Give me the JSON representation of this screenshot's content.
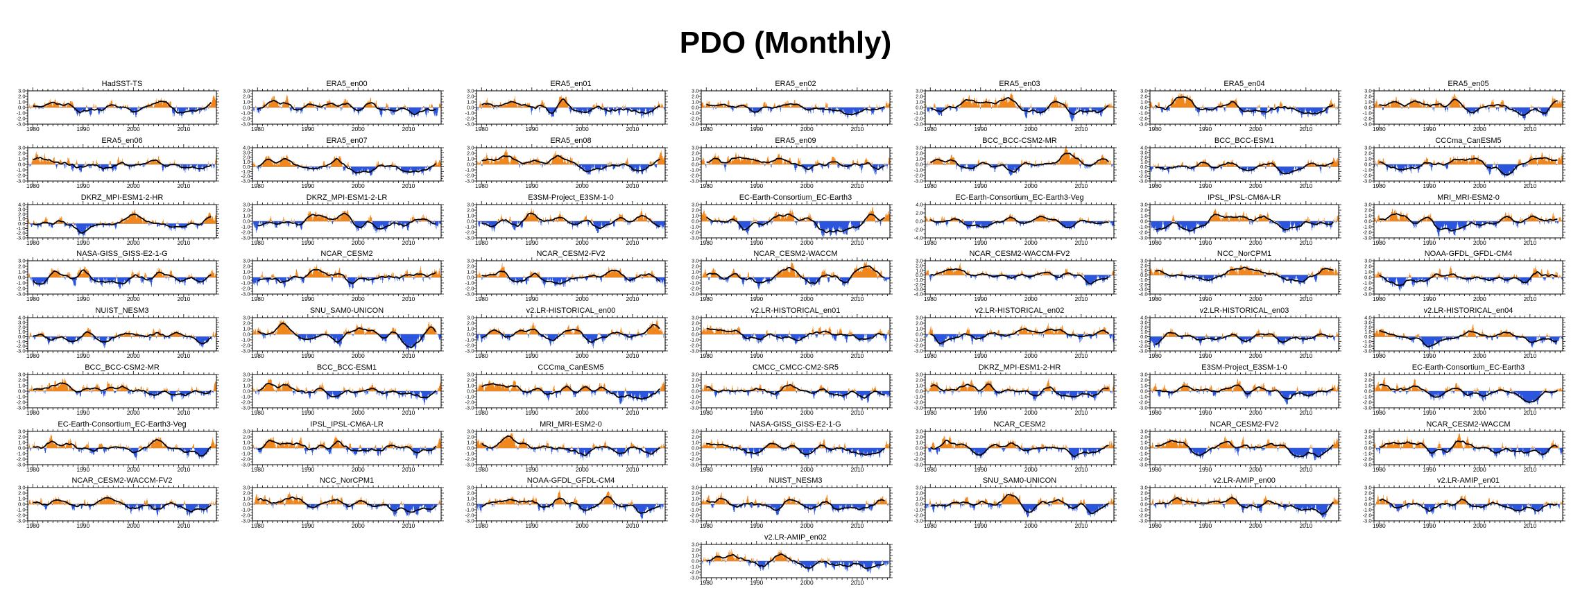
{
  "header": {
    "title": "PDO (Monthly)"
  },
  "colors": {
    "positive_fill": "#f0861e",
    "negative_fill": "#2b55dd",
    "smoothed_line": "#000000",
    "zero_line": "#b0b0b0",
    "frame": "#000000",
    "background": "#ffffff"
  },
  "chart_data": {
    "type": "bar+line",
    "description": "Grid of 57 small-multiple panels of the monthly PDO index (orange = positive anomalies, blue = negative anomalies) with a black low-pass smoothed line, for observations/reanalysis members and CMIP model runs.",
    "x_range": [
      1979,
      2016.5
    ],
    "xtick_years": [
      1980,
      1990,
      2000,
      2010
    ],
    "xtick_labels": [
      "1980",
      "1990",
      "2000",
      "2010"
    ],
    "x_minor_step_years": 1,
    "default_ylim": [
      -3,
      3
    ],
    "default_ytick_step": 1.0,
    "y_minor_divisions": 2,
    "grid": "off",
    "legend": "none",
    "observed_smoothed_line_approx": {
      "x": [
        1979,
        1981,
        1983.5,
        1986,
        1988,
        1989.8,
        1991,
        1992.5,
        1994,
        1995.5,
        1997.5,
        1999,
        2000.5,
        2002,
        2003.5,
        2005,
        2006.5,
        2008,
        2010,
        2011.5,
        2013,
        2014.5,
        2016.4
      ],
      "y": [
        0.35,
        0.55,
        0.65,
        0.75,
        0.3,
        -0.25,
        0.0,
        0.4,
        0.3,
        0.8,
        0.55,
        -0.5,
        -0.6,
        -0.3,
        0.1,
        0.15,
        -0.2,
        -0.8,
        -0.7,
        -1.1,
        -0.9,
        -0.2,
        0.7
      ]
    },
    "panels": [
      {
        "title": "HadSST-TS",
        "ylim": [
          -3,
          3
        ],
        "ystep": 1,
        "obs_blend": 1
      },
      {
        "title": "ERA5_en00",
        "ylim": [
          -3,
          3
        ],
        "ystep": 1,
        "obs_blend": 1
      },
      {
        "title": "ERA5_en01",
        "ylim": [
          -3,
          3
        ],
        "ystep": 1,
        "obs_blend": 1
      },
      {
        "title": "ERA5_en02",
        "ylim": [
          -3,
          3
        ],
        "ystep": 1,
        "obs_blend": 1
      },
      {
        "title": "ERA5_en03",
        "ylim": [
          -3,
          3
        ],
        "ystep": 1,
        "obs_blend": 1
      },
      {
        "title": "ERA5_en04",
        "ylim": [
          -3,
          3
        ],
        "ystep": 1,
        "obs_blend": 1
      },
      {
        "title": "ERA5_en05",
        "ylim": [
          -3,
          3
        ],
        "ystep": 1,
        "obs_blend": 1
      },
      {
        "title": "ERA5_en06",
        "ylim": [
          -3,
          3
        ],
        "ystep": 1,
        "obs_blend": 1
      },
      {
        "title": "ERA5_en07",
        "ylim": [
          -3,
          4
        ],
        "ystep": 1,
        "obs_blend": 1
      },
      {
        "title": "ERA5_en08",
        "ylim": [
          -3,
          3
        ],
        "ystep": 1,
        "obs_blend": 1
      },
      {
        "title": "ERA5_en09",
        "ylim": [
          -3,
          3
        ],
        "ystep": 1,
        "obs_blend": 1
      },
      {
        "title": "BCC_BCC-CSM2-MR",
        "ylim": [
          -3,
          3
        ],
        "ystep": 1,
        "obs_blend": 0
      },
      {
        "title": "BCC_BCC-ESM1",
        "ylim": [
          -3,
          4
        ],
        "ystep": 1,
        "obs_blend": 0
      },
      {
        "title": "CCCma_CanESM5",
        "ylim": [
          -3,
          3
        ],
        "ystep": 1,
        "obs_blend": 0
      },
      {
        "title": "DKRZ_MPI-ESM1-2-HR",
        "ylim": [
          -3,
          4
        ],
        "ystep": 1,
        "obs_blend": 0
      },
      {
        "title": "DKRZ_MPI-ESM1-2-LR",
        "ylim": [
          -3,
          3
        ],
        "ystep": 1,
        "obs_blend": 0
      },
      {
        "title": "E3SM-Project_E3SM-1-0",
        "ylim": [
          -3,
          3
        ],
        "ystep": 1,
        "obs_blend": 0
      },
      {
        "title": "EC-Earth-Consortium_EC-Earth3",
        "ylim": [
          -3,
          3
        ],
        "ystep": 1,
        "obs_blend": 0
      },
      {
        "title": "EC-Earth-Consortium_EC-Earth3-Veg",
        "ylim": [
          -4,
          4
        ],
        "ystep": 2,
        "obs_blend": 0
      },
      {
        "title": "IPSL_IPSL-CM6A-LR",
        "ylim": [
          -3,
          3
        ],
        "ystep": 1,
        "obs_blend": 0
      },
      {
        "title": "MRI_MRI-ESM2-0",
        "ylim": [
          -3,
          3
        ],
        "ystep": 1,
        "obs_blend": 0
      },
      {
        "title": "NASA-GISS_GISS-E2-1-G",
        "ylim": [
          -3,
          3
        ],
        "ystep": 1,
        "obs_blend": 0
      },
      {
        "title": "NCAR_CESM2",
        "ylim": [
          -3,
          3
        ],
        "ystep": 1,
        "obs_blend": 0
      },
      {
        "title": "NCAR_CESM2-FV2",
        "ylim": [
          -3,
          3
        ],
        "ystep": 1,
        "obs_blend": 0
      },
      {
        "title": "NCAR_CESM2-WACCM",
        "ylim": [
          -3,
          3
        ],
        "ystep": 1,
        "obs_blend": 0
      },
      {
        "title": "NCAR_CESM2-WACCM-FV2",
        "ylim": [
          -4,
          3
        ],
        "ystep": 1,
        "obs_blend": 0
      },
      {
        "title": "NCC_NorCPM1",
        "ylim": [
          -4,
          3
        ],
        "ystep": 1,
        "obs_blend": 0
      },
      {
        "title": "NOAA-GFDL_GFDL-CM4",
        "ylim": [
          -3,
          3
        ],
        "ystep": 1,
        "obs_blend": 0
      },
      {
        "title": "NUIST_NESM3",
        "ylim": [
          -3,
          4
        ],
        "ystep": 1,
        "obs_blend": 0
      },
      {
        "title": "SNU_SAM0-UNICON",
        "ylim": [
          -3,
          3
        ],
        "ystep": 1,
        "obs_blend": 0
      },
      {
        "title": "v2.LR-HISTORICAL_en00",
        "ylim": [
          -3,
          3
        ],
        "ystep": 1,
        "obs_blend": 0
      },
      {
        "title": "v2.LR-HISTORICAL_en01",
        "ylim": [
          -3,
          3
        ],
        "ystep": 1,
        "obs_blend": 0
      },
      {
        "title": "v2.LR-HISTORICAL_en02",
        "ylim": [
          -3,
          3
        ],
        "ystep": 1,
        "obs_blend": 0
      },
      {
        "title": "v2.LR-HISTORICAL_en03",
        "ylim": [
          -3,
          4
        ],
        "ystep": 1,
        "obs_blend": 0
      },
      {
        "title": "v2.LR-HISTORICAL_en04",
        "ylim": [
          -3,
          4
        ],
        "ystep": 1,
        "obs_blend": 0
      },
      {
        "title": "BCC_BCC-CSM2-MR",
        "ylim": [
          -3,
          3
        ],
        "ystep": 1,
        "obs_blend": 0.8
      },
      {
        "title": "BCC_BCC-ESM1",
        "ylim": [
          -3,
          3
        ],
        "ystep": 1,
        "obs_blend": 0.8
      },
      {
        "title": "CCCma_CanESM5",
        "ylim": [
          -3,
          3
        ],
        "ystep": 1,
        "obs_blend": 0.8
      },
      {
        "title": "CMCC_CMCC-CM2-SR5",
        "ylim": [
          -3,
          3
        ],
        "ystep": 1,
        "obs_blend": 0.8
      },
      {
        "title": "DKRZ_MPI-ESM1-2-HR",
        "ylim": [
          -3,
          3
        ],
        "ystep": 1,
        "obs_blend": 0.8
      },
      {
        "title": "E3SM-Project_E3SM-1-0",
        "ylim": [
          -3,
          3
        ],
        "ystep": 1,
        "obs_blend": 0.8
      },
      {
        "title": "EC-Earth-Consortium_EC-Earth3",
        "ylim": [
          -3,
          3
        ],
        "ystep": 1,
        "obs_blend": 0.8
      },
      {
        "title": "EC-Earth-Consortium_EC-Earth3-Veg",
        "ylim": [
          -3,
          3
        ],
        "ystep": 1,
        "obs_blend": 0.8
      },
      {
        "title": "IPSL_IPSL-CM6A-LR",
        "ylim": [
          -3,
          3
        ],
        "ystep": 1,
        "obs_blend": 0.8
      },
      {
        "title": "MRI_MRI-ESM2-0",
        "ylim": [
          -3,
          3
        ],
        "ystep": 1,
        "obs_blend": 0.8
      },
      {
        "title": "NASA-GISS_GISS-E2-1-G",
        "ylim": [
          -3,
          3
        ],
        "ystep": 1,
        "obs_blend": 0.8
      },
      {
        "title": "NCAR_CESM2",
        "ylim": [
          -3,
          3
        ],
        "ystep": 1,
        "obs_blend": 0.8
      },
      {
        "title": "NCAR_CESM2-FV2",
        "ylim": [
          -3,
          3
        ],
        "ystep": 1,
        "obs_blend": 0.8
      },
      {
        "title": "NCAR_CESM2-WACCM",
        "ylim": [
          -3,
          3
        ],
        "ystep": 1,
        "obs_blend": 0.8
      },
      {
        "title": "NCAR_CESM2-WACCM-FV2",
        "ylim": [
          -3,
          3
        ],
        "ystep": 1,
        "obs_blend": 0.8
      },
      {
        "title": "NCC_NorCPM1",
        "ylim": [
          -3,
          3
        ],
        "ystep": 1,
        "obs_blend": 0.8
      },
      {
        "title": "NOAA-GFDL_GFDL-CM4",
        "ylim": [
          -3,
          3
        ],
        "ystep": 1,
        "obs_blend": 0.8
      },
      {
        "title": "NUIST_NESM3",
        "ylim": [
          -3,
          3
        ],
        "ystep": 1,
        "obs_blend": 0.8
      },
      {
        "title": "SNU_SAM0-UNICON",
        "ylim": [
          -3,
          3
        ],
        "ystep": 1,
        "obs_blend": 0.8
      },
      {
        "title": "v2.LR-AMIP_en00",
        "ylim": [
          -3,
          3
        ],
        "ystep": 1,
        "obs_blend": 0.8
      },
      {
        "title": "v2.LR-AMIP_en01",
        "ylim": [
          -3,
          3
        ],
        "ystep": 1,
        "obs_blend": 0.8
      },
      {
        "title": "v2.LR-AMIP_en02",
        "ylim": [
          -3,
          3
        ],
        "ystep": 1,
        "obs_blend": 0.8
      }
    ]
  }
}
